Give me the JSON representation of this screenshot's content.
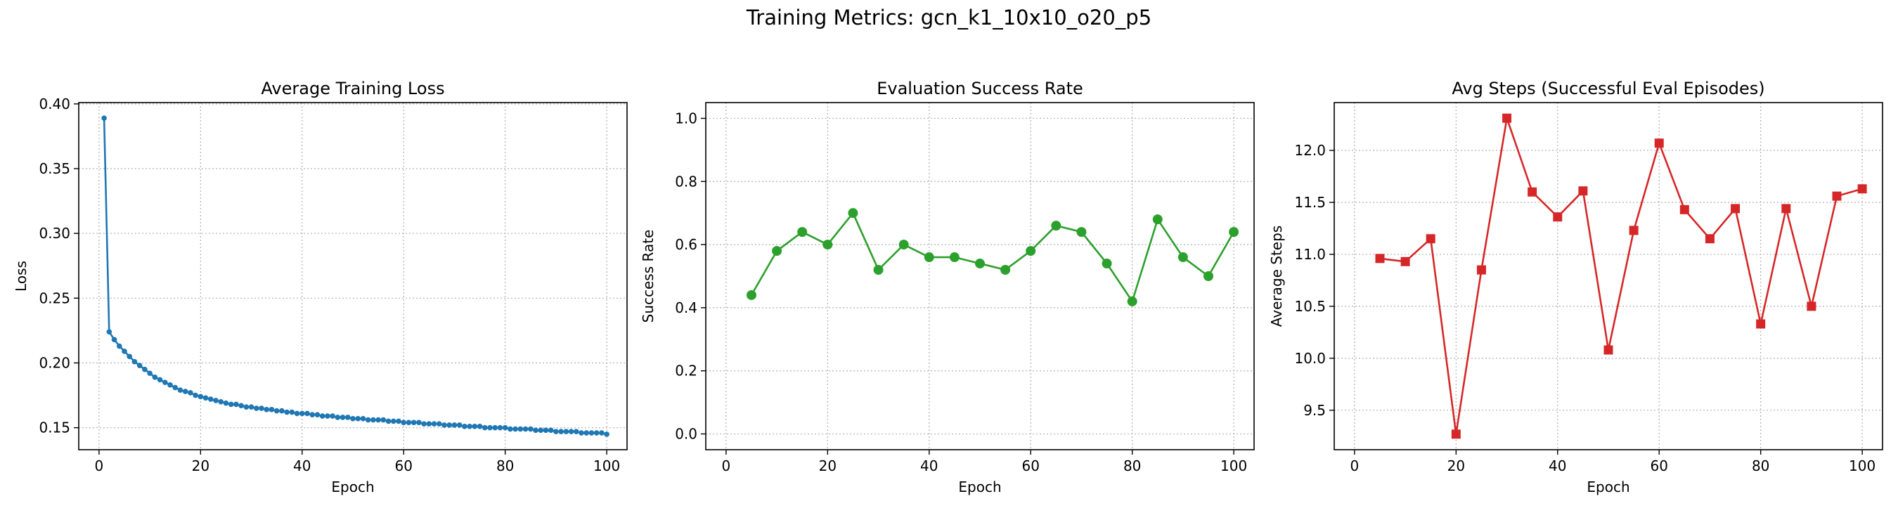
{
  "suptitle": "Training Metrics: gcn_k1_10x10_o20_p5",
  "chart_data": [
    {
      "type": "line",
      "title": "Average Training Loss",
      "xlabel": "Epoch",
      "ylabel": "Loss",
      "xlim": [
        -4,
        104
      ],
      "ylim": [
        0.133,
        0.401
      ],
      "xticks": [
        0,
        20,
        40,
        60,
        80,
        100
      ],
      "yticks": [
        0.15,
        0.2,
        0.25,
        0.3,
        0.35,
        0.4
      ],
      "ytick_decimals": 2,
      "grid": true,
      "marker": "circle-small",
      "color": "#1f77b4",
      "series": [
        {
          "x": [
            1,
            2,
            3,
            4,
            5,
            6,
            7,
            8,
            9,
            10,
            11,
            12,
            13,
            14,
            15,
            16,
            17,
            18,
            19,
            20,
            21,
            22,
            23,
            24,
            25,
            26,
            27,
            28,
            29,
            30,
            31,
            32,
            33,
            34,
            35,
            36,
            37,
            38,
            39,
            40,
            41,
            42,
            43,
            44,
            45,
            46,
            47,
            48,
            49,
            50,
            51,
            52,
            53,
            54,
            55,
            56,
            57,
            58,
            59,
            60,
            61,
            62,
            63,
            64,
            65,
            66,
            67,
            68,
            69,
            70,
            71,
            72,
            73,
            74,
            75,
            76,
            77,
            78,
            79,
            80,
            81,
            82,
            83,
            84,
            85,
            86,
            87,
            88,
            89,
            90,
            91,
            92,
            93,
            94,
            95,
            96,
            97,
            98,
            99,
            100
          ],
          "values": [
            0.389,
            0.224,
            0.218,
            0.213,
            0.209,
            0.205,
            0.201,
            0.198,
            0.195,
            0.192,
            0.189,
            0.187,
            0.185,
            0.183,
            0.181,
            0.179,
            0.178,
            0.177,
            0.175,
            0.174,
            0.173,
            0.172,
            0.171,
            0.17,
            0.169,
            0.168,
            0.168,
            0.167,
            0.166,
            0.166,
            0.165,
            0.165,
            0.164,
            0.164,
            0.163,
            0.163,
            0.162,
            0.162,
            0.161,
            0.161,
            0.161,
            0.16,
            0.16,
            0.159,
            0.159,
            0.159,
            0.158,
            0.158,
            0.158,
            0.157,
            0.157,
            0.157,
            0.156,
            0.156,
            0.156,
            0.156,
            0.155,
            0.155,
            0.155,
            0.154,
            0.154,
            0.154,
            0.154,
            0.153,
            0.153,
            0.153,
            0.153,
            0.152,
            0.152,
            0.152,
            0.152,
            0.151,
            0.151,
            0.151,
            0.151,
            0.15,
            0.15,
            0.15,
            0.15,
            0.15,
            0.149,
            0.149,
            0.149,
            0.149,
            0.149,
            0.148,
            0.148,
            0.148,
            0.148,
            0.147,
            0.147,
            0.147,
            0.147,
            0.147,
            0.146,
            0.146,
            0.146,
            0.146,
            0.146,
            0.145
          ]
        }
      ]
    },
    {
      "type": "line",
      "title": "Evaluation Success Rate",
      "xlabel": "Epoch",
      "ylabel": "Success Rate",
      "xlim": [
        -4,
        104
      ],
      "ylim": [
        -0.05,
        1.05
      ],
      "xticks": [
        0,
        20,
        40,
        60,
        80,
        100
      ],
      "yticks": [
        0.0,
        0.2,
        0.4,
        0.6,
        0.8,
        1.0
      ],
      "ytick_decimals": 1,
      "grid": true,
      "marker": "circle",
      "color": "#2ca02c",
      "series": [
        {
          "x": [
            5,
            10,
            15,
            20,
            25,
            30,
            35,
            40,
            45,
            50,
            55,
            60,
            65,
            70,
            75,
            80,
            85,
            90,
            95,
            100
          ],
          "values": [
            0.44,
            0.58,
            0.64,
            0.6,
            0.7,
            0.52,
            0.6,
            0.56,
            0.56,
            0.54,
            0.52,
            0.58,
            0.66,
            0.64,
            0.54,
            0.42,
            0.68,
            0.56,
            0.5,
            0.64
          ]
        }
      ]
    },
    {
      "type": "line",
      "title": "Avg Steps (Successful Eval Episodes)",
      "xlabel": "Epoch",
      "ylabel": "Average Steps",
      "xlim": [
        -4,
        104
      ],
      "ylim": [
        9.12,
        12.46
      ],
      "xticks": [
        0,
        20,
        40,
        60,
        80,
        100
      ],
      "yticks": [
        9.5,
        10.0,
        10.5,
        11.0,
        11.5,
        12.0
      ],
      "ytick_decimals": 1,
      "grid": true,
      "marker": "square",
      "color": "#d62728",
      "series": [
        {
          "x": [
            5,
            10,
            15,
            20,
            25,
            30,
            35,
            40,
            45,
            50,
            55,
            60,
            65,
            70,
            75,
            80,
            85,
            90,
            95,
            100
          ],
          "values": [
            10.96,
            10.93,
            11.15,
            9.27,
            10.85,
            12.31,
            11.6,
            11.36,
            11.61,
            10.08,
            11.23,
            12.07,
            11.43,
            11.15,
            11.44,
            10.33,
            11.44,
            10.5,
            11.56,
            11.63
          ]
        }
      ]
    }
  ]
}
